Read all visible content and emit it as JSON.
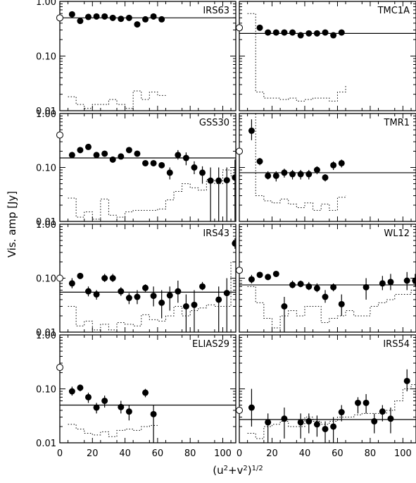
{
  "figure": {
    "ylabel": "Vis. amp [Jy]",
    "xlabel_base": "(u",
    "xlabel_sup1": "2",
    "xlabel_mid": "+v",
    "xlabel_sup2": "2",
    "xlabel_close": ")",
    "xlabel_sup3": "1/2",
    "x_tick_labels": [
      "0",
      "20",
      "40",
      "60",
      "80",
      "100"
    ],
    "y_tick_labels": [
      "0.01",
      "0.10",
      "1.00"
    ]
  },
  "chart_data": {
    "type": "scatter",
    "yscale": "log",
    "xlim": [
      0,
      108
    ],
    "ylim": [
      0.01,
      1.0
    ],
    "x_ticks": [
      0,
      20,
      40,
      60,
      80,
      100
    ],
    "y_ticks": [
      0.01,
      0.1,
      1.0
    ],
    "panels": [
      {
        "name": "IRS63",
        "zero_spacing": 0.5,
        "model": 0.5,
        "x": [
          7.5,
          12.5,
          17.5,
          22.5,
          27.5,
          32.5,
          37.5,
          42.5,
          47.5,
          52.5,
          57.5,
          62.5
        ],
        "y": [
          0.58,
          0.44,
          0.52,
          0.53,
          0.53,
          0.5,
          0.48,
          0.5,
          0.38,
          0.47,
          0.53,
          0.47
        ],
        "err_lo": [
          null,
          null,
          null,
          null,
          null,
          null,
          null,
          null,
          null,
          null,
          null,
          null
        ],
        "err_hi": [
          null,
          null,
          null,
          null,
          null,
          null,
          null,
          null,
          null,
          null,
          null,
          null
        ],
        "noise_x": [
          5,
          10,
          15,
          20,
          25,
          30,
          35,
          40,
          45,
          50,
          55,
          60,
          65
        ],
        "noise_y": [
          0.018,
          0.013,
          0.011,
          0.013,
          0.013,
          0.016,
          0.013,
          0.011,
          0.023,
          0.016,
          0.022,
          0.019,
          0.019
        ]
      },
      {
        "name": "TMC1A",
        "zero_spacing": 0.33,
        "model": 0.26,
        "x": [
          12.5,
          17.5,
          22.5,
          27.5,
          32.5,
          37.5,
          42.5,
          47.5,
          52.5,
          57.5,
          62.5
        ],
        "y": [
          0.33,
          0.27,
          0.27,
          0.27,
          0.27,
          0.24,
          0.26,
          0.26,
          0.27,
          0.24,
          0.27
        ],
        "err_lo": [
          null,
          null,
          null,
          null,
          null,
          null,
          null,
          null,
          null,
          null,
          null
        ],
        "err_hi": [
          null,
          null,
          null,
          null,
          null,
          null,
          null,
          null,
          null,
          null,
          null
        ],
        "noise_x": [
          5,
          10,
          15,
          20,
          25,
          30,
          35,
          40,
          45,
          50,
          55,
          60,
          65
        ],
        "noise_y": [
          0.6,
          0.022,
          0.017,
          0.017,
          0.016,
          0.017,
          0.015,
          0.016,
          0.017,
          0.017,
          0.015,
          0.022,
          0.03
        ]
      },
      {
        "name": "GSS30",
        "zero_spacing": 0.4,
        "model": 0.15,
        "x": [
          7.5,
          12.5,
          17.5,
          22.5,
          27.5,
          32.5,
          37.5,
          42.5,
          47.5,
          52.5,
          57.5,
          62.5,
          67.5,
          72.5,
          77.5,
          82.5,
          87.5,
          92.5,
          97.5,
          102.5,
          107.5
        ],
        "y": [
          0.17,
          0.21,
          0.24,
          0.17,
          0.18,
          0.14,
          0.16,
          0.21,
          0.18,
          0.12,
          0.12,
          0.11,
          0.08,
          0.17,
          0.15,
          0.1,
          0.08,
          0.057,
          0.057,
          0.058,
          0.065
        ],
        "err_lo": [
          null,
          null,
          null,
          null,
          null,
          null,
          null,
          null,
          null,
          null,
          null,
          null,
          0.06,
          0.14,
          0.11,
          0.075,
          0.05,
          0.01,
          0.01,
          0.01,
          0.01
        ],
        "err_hi": [
          null,
          null,
          null,
          null,
          null,
          null,
          null,
          null,
          null,
          null,
          null,
          null,
          0.1,
          0.21,
          0.19,
          0.13,
          0.105,
          0.1,
          0.1,
          0.1,
          0.14
        ],
        "noise_x": [
          5,
          10,
          15,
          20,
          25,
          30,
          35,
          40,
          45,
          50,
          55,
          60,
          65,
          70,
          75,
          80,
          85,
          90,
          95,
          100,
          105,
          110
        ],
        "noise_y": [
          0.027,
          0.012,
          0.015,
          0.011,
          0.026,
          0.013,
          0.012,
          0.015,
          0.016,
          0.016,
          0.016,
          0.017,
          0.025,
          0.036,
          0.05,
          0.042,
          0.038,
          0.06,
          0.05,
          0.09,
          0.07
        ]
      },
      {
        "name": "TMR1",
        "zero_spacing": 0.2,
        "model": 0.08,
        "x": [
          7.5,
          12.5,
          17.5,
          22.5,
          27.5,
          32.5,
          37.5,
          42.5,
          47.5,
          52.5,
          57.5,
          62.5
        ],
        "y": [
          0.48,
          0.13,
          0.07,
          0.07,
          0.08,
          0.075,
          0.075,
          0.075,
          0.09,
          0.065,
          0.11,
          0.12
        ],
        "err_lo": [
          0.32,
          0.11,
          0.06,
          0.055,
          0.065,
          0.06,
          0.06,
          0.06,
          0.075,
          0.055,
          0.09,
          0.1
        ],
        "err_hi": [
          0.78,
          0.15,
          0.085,
          0.085,
          0.095,
          0.09,
          0.09,
          0.09,
          0.105,
          0.075,
          0.13,
          0.14
        ],
        "noise_x": [
          5,
          10,
          15,
          20,
          25,
          30,
          35,
          40,
          45,
          50,
          55,
          60,
          65
        ],
        "noise_y": [
          1.0,
          0.03,
          0.024,
          0.022,
          0.026,
          0.021,
          0.018,
          0.022,
          0.016,
          0.021,
          0.016,
          0.028,
          0.03
        ]
      },
      {
        "name": "IRS43",
        "zero_spacing": 0.1,
        "model": 0.055,
        "x": [
          7.5,
          12.5,
          17.5,
          22.5,
          27.5,
          32.5,
          37.5,
          42.5,
          47.5,
          52.5,
          57.5,
          62.5,
          67.5,
          72.5,
          77.5,
          82.5,
          87.5,
          92.5,
          97.5,
          102.5,
          107.5
        ],
        "y": [
          0.08,
          0.11,
          0.057,
          0.05,
          0.1,
          0.1,
          0.057,
          0.043,
          0.045,
          0.066,
          0.047,
          0.035,
          0.048,
          0.057,
          0.03,
          0.032,
          0.07,
          null,
          0.04,
          0.053,
          0.44
        ],
        "err_lo": [
          0.065,
          null,
          0.046,
          0.04,
          0.085,
          0.085,
          0.047,
          0.033,
          0.033,
          0.056,
          0.03,
          0.018,
          0.025,
          0.035,
          0.01,
          0.01,
          0.06,
          null,
          0.01,
          0.01,
          0.35
        ],
        "err_hi": [
          0.1,
          null,
          0.07,
          0.06,
          0.12,
          0.12,
          0.068,
          0.053,
          0.06,
          0.077,
          0.07,
          0.06,
          0.07,
          0.09,
          0.05,
          0.06,
          0.085,
          null,
          0.07,
          0.1,
          0.55
        ],
        "noise_x": [
          5,
          10,
          15,
          20,
          25,
          30,
          35,
          40,
          45,
          50,
          55,
          60,
          65,
          70,
          75,
          80,
          85,
          90,
          95,
          100,
          105,
          110
        ],
        "noise_y": [
          0.03,
          0.013,
          0.016,
          0.011,
          0.014,
          0.011,
          0.015,
          0.014,
          0.013,
          0.021,
          0.017,
          0.016,
          0.02,
          0.03,
          0.02,
          0.025,
          0.028,
          0.032,
          0.03,
          0.03,
          0.2
        ]
      },
      {
        "name": "WL12",
        "zero_spacing": 0.14,
        "model": 0.075,
        "x": [
          7.5,
          12.5,
          17.5,
          22.5,
          27.5,
          32.5,
          37.5,
          42.5,
          47.5,
          52.5,
          57.5,
          62.5,
          67.5,
          72.5,
          77.5,
          82.5,
          87.5,
          92.5,
          97.5,
          102.5,
          107.5
        ],
        "y": [
          0.095,
          0.115,
          0.105,
          0.12,
          0.03,
          0.075,
          0.078,
          0.07,
          0.065,
          0.045,
          0.068,
          0.033,
          null,
          null,
          0.068,
          null,
          0.08,
          0.085,
          null,
          0.09,
          0.09
        ],
        "err_lo": [
          0.08,
          null,
          null,
          null,
          0.01,
          0.065,
          0.068,
          0.06,
          0.055,
          0.035,
          0.057,
          0.02,
          null,
          null,
          0.04,
          null,
          0.06,
          0.06,
          null,
          0.06,
          0.07
        ],
        "err_hi": [
          0.115,
          null,
          null,
          null,
          0.045,
          0.09,
          0.09,
          0.085,
          0.08,
          0.06,
          0.08,
          0.05,
          null,
          null,
          0.1,
          null,
          0.11,
          0.12,
          null,
          0.13,
          0.12
        ],
        "noise_x": [
          5,
          10,
          15,
          20,
          25,
          30,
          35,
          40,
          45,
          50,
          55,
          60,
          65,
          70,
          75,
          80,
          85,
          90,
          95,
          100,
          105,
          110
        ],
        "noise_y": [
          0.07,
          0.035,
          0.018,
          0.012,
          0.02,
          0.025,
          0.02,
          0.03,
          0.03,
          0.015,
          0.018,
          0.02,
          0.025,
          0.02,
          0.02,
          0.03,
          0.035,
          0.04,
          0.05,
          0.05,
          0.06
        ]
      },
      {
        "name": "ELIAS29",
        "zero_spacing": 0.25,
        "model": 0.05,
        "x": [
          7.5,
          12.5,
          17.5,
          22.5,
          27.5,
          32.5,
          37.5,
          42.5,
          47.5,
          52.5,
          57.5
        ],
        "y": [
          0.09,
          0.105,
          0.07,
          0.045,
          0.06,
          null,
          0.046,
          0.038,
          null,
          0.085,
          0.034
        ],
        "err_lo": [
          0.075,
          0.09,
          0.055,
          0.035,
          0.045,
          null,
          0.035,
          0.026,
          null,
          0.07,
          0.01
        ],
        "err_hi": [
          0.11,
          0.12,
          0.085,
          0.055,
          0.075,
          null,
          0.06,
          0.05,
          null,
          0.1,
          0.05
        ],
        "noise_x": [
          5,
          10,
          15,
          20,
          25,
          30,
          35,
          40,
          45,
          50,
          55,
          60
        ],
        "noise_y": [
          0.022,
          0.018,
          0.015,
          0.014,
          0.016,
          0.013,
          0.017,
          0.018,
          0.017,
          0.02,
          0.021
        ]
      },
      {
        "name": "IRS54",
        "zero_spacing": 0.04,
        "model": 0.027,
        "x": [
          7.5,
          12.5,
          17.5,
          22.5,
          27.5,
          32.5,
          37.5,
          42.5,
          47.5,
          52.5,
          57.5,
          62.5,
          67.5,
          72.5,
          77.5,
          82.5,
          87.5,
          92.5,
          97.5,
          102.5,
          107.5
        ],
        "y": [
          0.045,
          null,
          0.024,
          null,
          0.028,
          null,
          0.024,
          0.025,
          0.022,
          0.018,
          0.02,
          0.037,
          null,
          0.055,
          0.055,
          0.025,
          0.038,
          0.028,
          null,
          0.14,
          null
        ],
        "err_lo": [
          0.02,
          null,
          0.01,
          null,
          0.012,
          null,
          0.012,
          0.015,
          0.013,
          0.01,
          0.01,
          0.025,
          null,
          0.035,
          0.035,
          0.015,
          0.025,
          0.015,
          null,
          0.09,
          null
        ],
        "err_hi": [
          0.1,
          null,
          0.035,
          null,
          0.045,
          null,
          0.035,
          0.035,
          0.032,
          0.025,
          0.03,
          0.05,
          null,
          0.07,
          0.08,
          0.035,
          0.05,
          0.045,
          null,
          0.23,
          null
        ],
        "noise_x": [
          5,
          10,
          15,
          20,
          25,
          30,
          35,
          40,
          45,
          50,
          55,
          60,
          65,
          70,
          75,
          80,
          85,
          90,
          95,
          100,
          105,
          110
        ],
        "noise_y": [
          0.015,
          0.012,
          0.02,
          0.022,
          0.025,
          0.02,
          0.02,
          0.03,
          0.025,
          0.022,
          0.025,
          0.03,
          0.03,
          0.033,
          0.035,
          0.035,
          0.035,
          0.04,
          0.06,
          0.1,
          0.12
        ]
      }
    ]
  }
}
